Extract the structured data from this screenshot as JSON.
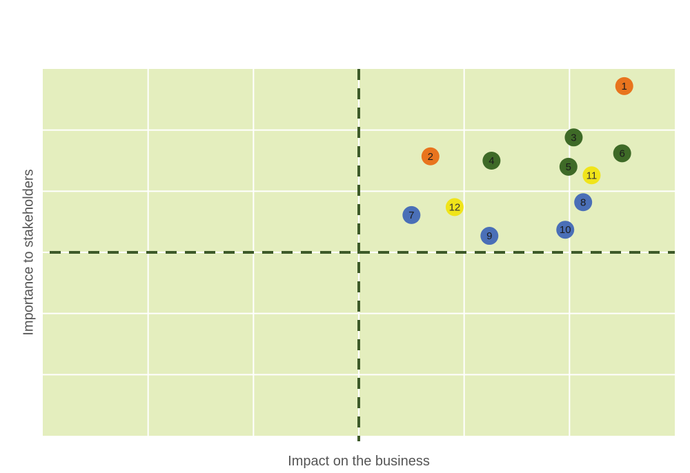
{
  "chart_data": {
    "type": "scatter",
    "title": "",
    "xlabel": "Impact on the business",
    "ylabel": "Importance to stakeholders",
    "xlim": [
      0,
      6
    ],
    "ylim": [
      0,
      6
    ],
    "grid": true,
    "quadrant_lines": {
      "x": 3,
      "y": 3
    },
    "colors": {
      "plot_background": "#e4eebe",
      "gridline": "#ffffff",
      "quadrant_line": "#3d5a29",
      "orange": "#e8741e",
      "green": "#3e6a27",
      "blue": "#4a6fb7",
      "yellow": "#f0e41a"
    },
    "points": [
      {
        "label": "1",
        "x": 5.52,
        "y": 5.72,
        "color": "orange"
      },
      {
        "label": "2",
        "x": 3.68,
        "y": 4.57,
        "color": "orange"
      },
      {
        "label": "3",
        "x": 5.04,
        "y": 4.88,
        "color": "green"
      },
      {
        "label": "4",
        "x": 4.26,
        "y": 4.5,
        "color": "green"
      },
      {
        "label": "5",
        "x": 4.99,
        "y": 4.4,
        "color": "green"
      },
      {
        "label": "6",
        "x": 5.5,
        "y": 4.62,
        "color": "green"
      },
      {
        "label": "7",
        "x": 3.5,
        "y": 3.61,
        "color": "blue"
      },
      {
        "label": "8",
        "x": 5.13,
        "y": 3.82,
        "color": "blue"
      },
      {
        "label": "9",
        "x": 4.24,
        "y": 3.27,
        "color": "blue"
      },
      {
        "label": "10",
        "x": 4.96,
        "y": 3.37,
        "color": "blue"
      },
      {
        "label": "11",
        "x": 5.21,
        "y": 4.26,
        "color": "yellow"
      },
      {
        "label": "12",
        "x": 3.91,
        "y": 3.74,
        "color": "yellow"
      }
    ]
  }
}
